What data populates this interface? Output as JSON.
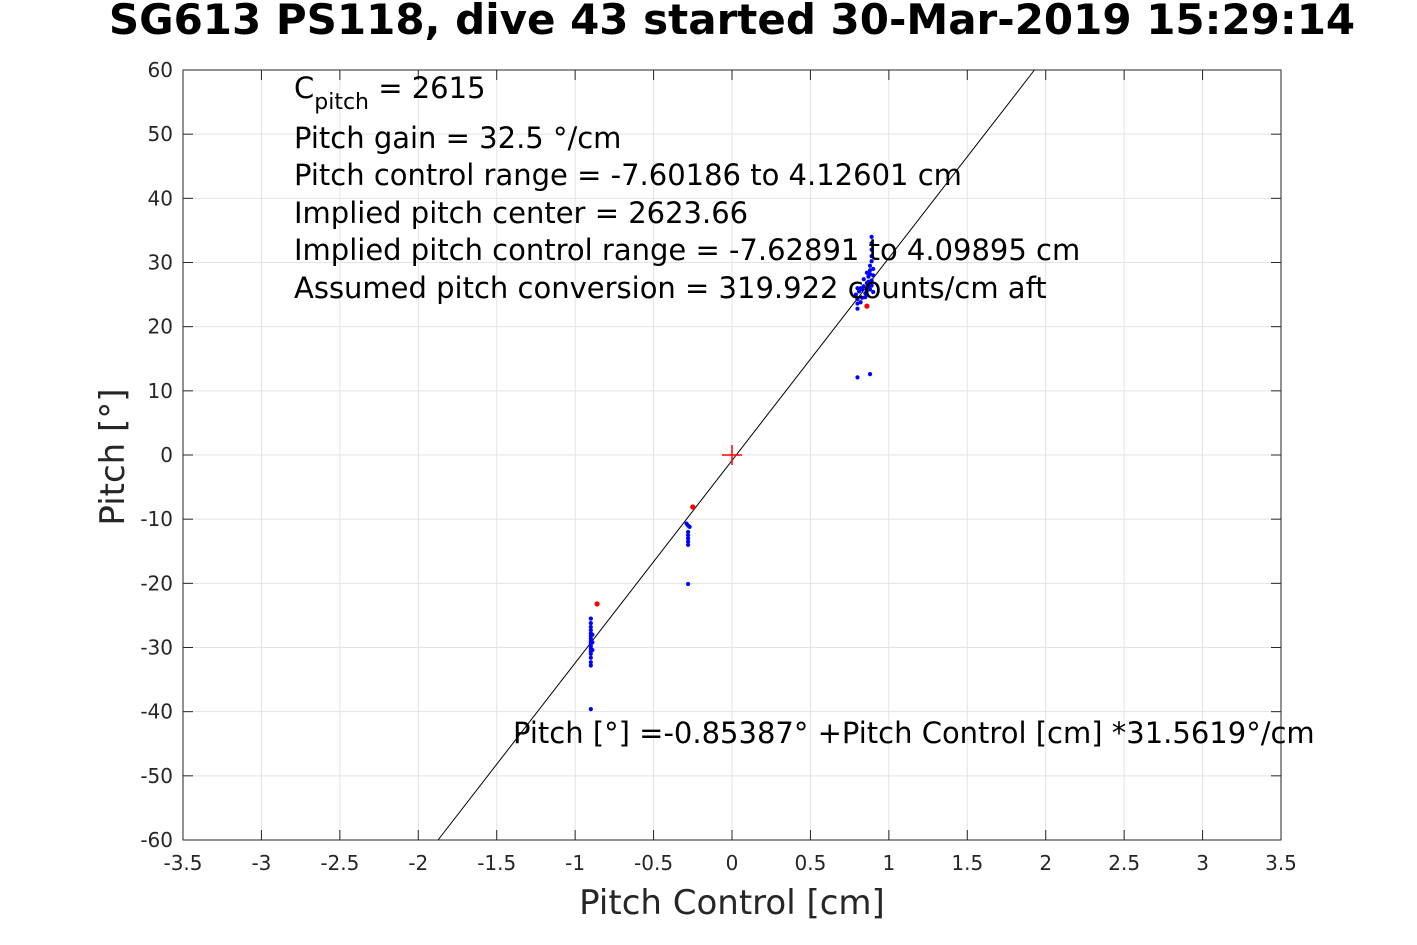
{
  "chart_data": {
    "type": "scatter",
    "title": "SG613 PS118, dive 43 started 30-Mar-2019 15:29:14",
    "xlabel": "Pitch Control [cm]",
    "ylabel": "Pitch [°]",
    "xlim": [
      -3.5,
      3.5
    ],
    "ylim": [
      -60,
      60
    ],
    "xticks": [
      -3.5,
      -3,
      -2.5,
      -2,
      -1.5,
      -1,
      -0.5,
      0,
      0.5,
      1,
      1.5,
      2,
      2.5,
      3,
      3.5
    ],
    "xtick_labels": [
      "-3.5",
      "-3",
      "-2.5",
      "-2",
      "-1.5",
      "-1",
      "-0.5",
      "0",
      "0.5",
      "1",
      "1.5",
      "2",
      "2.5",
      "3",
      "3.5"
    ],
    "yticks": [
      -60,
      -50,
      -40,
      -30,
      -20,
      -10,
      0,
      10,
      20,
      30,
      40,
      50,
      60
    ],
    "ytick_labels": [
      "-60",
      "-50",
      "-40",
      "-30",
      "-20",
      "-10",
      "0",
      "10",
      "20",
      "30",
      "40",
      "50",
      "60"
    ],
    "grid": true,
    "colors": {
      "good_points": "#0000ff",
      "bad_points": "#ff0000",
      "fit_line": "#000000",
      "center_marker": "#ff0000"
    },
    "fit_line": {
      "intercept": -0.85387,
      "slope": 31.5619
    },
    "center_marker": {
      "x": 0,
      "y": 0
    },
    "series": [
      {
        "color": "#0000ff",
        "points": [
          [
            -0.9,
            -25.5
          ],
          [
            -0.9,
            -26.2
          ],
          [
            -0.9,
            -26.8
          ],
          [
            -0.9,
            -27.3
          ],
          [
            -0.9,
            -27.8
          ],
          [
            -0.9,
            -28.2
          ],
          [
            -0.9,
            -28.6
          ],
          [
            -0.9,
            -29.0
          ],
          [
            -0.9,
            -29.4
          ],
          [
            -0.9,
            -29.8
          ],
          [
            -0.9,
            -30.2
          ],
          [
            -0.9,
            -30.6
          ],
          [
            -0.9,
            -31.0
          ],
          [
            -0.9,
            -31.6
          ],
          [
            -0.9,
            -32.3
          ],
          [
            -0.9,
            -32.8
          ],
          [
            -0.89,
            -28.0
          ],
          [
            -0.89,
            -29.2
          ],
          [
            -0.89,
            -30.4
          ],
          [
            -0.9,
            -39.6
          ],
          [
            -0.29,
            -10.7
          ],
          [
            -0.28,
            -11.0
          ],
          [
            -0.27,
            -11.2
          ],
          [
            -0.28,
            -12.0
          ],
          [
            -0.28,
            -12.5
          ],
          [
            -0.28,
            -13.0
          ],
          [
            -0.28,
            -13.5
          ],
          [
            -0.28,
            -14.0
          ],
          [
            -0.28,
            -20.1
          ],
          [
            0.79,
            25.0
          ],
          [
            0.8,
            24.3
          ],
          [
            0.8,
            23.6
          ],
          [
            0.8,
            22.8
          ],
          [
            0.81,
            25.5
          ],
          [
            0.82,
            26.0
          ],
          [
            0.8,
            26.0
          ],
          [
            0.83,
            24.5
          ],
          [
            0.83,
            25.8
          ],
          [
            0.84,
            26.3
          ],
          [
            0.85,
            25.2
          ],
          [
            0.86,
            26.8
          ],
          [
            0.86,
            25.6
          ],
          [
            0.87,
            27.0
          ],
          [
            0.87,
            27.8
          ],
          [
            0.87,
            26.2
          ],
          [
            0.88,
            28.2
          ],
          [
            0.88,
            28.8
          ],
          [
            0.88,
            29.5
          ],
          [
            0.88,
            25.8
          ],
          [
            0.89,
            30.2
          ],
          [
            0.89,
            31.0
          ],
          [
            0.89,
            32.0
          ],
          [
            0.89,
            33.0
          ],
          [
            0.89,
            34.0
          ],
          [
            0.89,
            26.4
          ],
          [
            0.89,
            27.2
          ],
          [
            0.9,
            28.0
          ],
          [
            0.9,
            29.0
          ],
          [
            0.9,
            25.4
          ],
          [
            0.85,
            24.6
          ],
          [
            0.82,
            23.8
          ],
          [
            0.84,
            27.4
          ],
          [
            0.86,
            28.4
          ],
          [
            0.8,
            12.1
          ],
          [
            0.88,
            12.6
          ]
        ]
      },
      {
        "color": "#ff0000",
        "points": [
          [
            -0.86,
            -23.2
          ],
          [
            -0.25,
            -8.1
          ],
          [
            0.86,
            23.2
          ]
        ]
      }
    ],
    "annotations": {
      "cpitch_main": "C",
      "cpitch_sub": "pitch",
      "cpitch_value": " = 2615",
      "line2": "Pitch gain = 32.5 °/cm",
      "line3": "Pitch control range = -7.60186 to 4.12601 cm",
      "line4": "Implied pitch center = 2623.66",
      "line5": "Implied pitch control range = -7.62891 to 4.09895 cm",
      "line6": "Assumed pitch conversion = 319.922 counts/cm aft",
      "fit_equation": "Pitch [°] =-0.85387° +Pitch Control [cm] *31.5619°/cm"
    }
  }
}
